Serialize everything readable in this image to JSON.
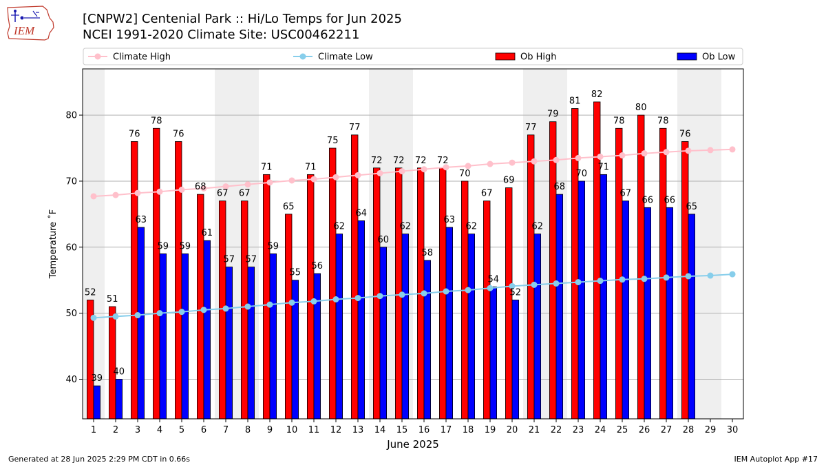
{
  "title_line1": "[CNPW2] Centenial Park :: Hi/Lo Temps for Jun 2025",
  "title_line2": "NCEI 1991-2020 Climate Site: USC00462211",
  "logo_text": "IEM",
  "footer_left": "Generated at 28 Jun 2025 2:29 PM CDT in 0.66s",
  "footer_right": "IEM Autoplot App #17",
  "colors": {
    "ob_high": "#ff0000",
    "ob_low": "#0000ff",
    "climate_high": "#ffc0cb",
    "climate_low": "#87ceeb",
    "weekend_band": "#efefef",
    "grid": "#b0b0b0"
  },
  "chart_data": {
    "type": "bar",
    "xlabel": "June 2025",
    "ylabel": "Temperature ˚F",
    "ylim": [
      34,
      87
    ],
    "yticks": [
      40,
      50,
      60,
      70,
      80
    ],
    "grid": "horizontal",
    "legend_position": "top",
    "x": [
      1,
      2,
      3,
      4,
      5,
      6,
      7,
      8,
      9,
      10,
      11,
      12,
      13,
      14,
      15,
      16,
      17,
      18,
      19,
      20,
      21,
      22,
      23,
      24,
      25,
      26,
      27,
      28,
      29,
      30
    ],
    "weekend_days": [
      1,
      7,
      8,
      14,
      15,
      21,
      22,
      28,
      29
    ],
    "series": [
      {
        "name": "Climate High",
        "kind": "line",
        "values": [
          67.7,
          67.9,
          68.2,
          68.4,
          68.7,
          68.9,
          69.2,
          69.5,
          69.8,
          70.1,
          70.3,
          70.6,
          70.9,
          71.2,
          71.5,
          71.8,
          72.1,
          72.3,
          72.6,
          72.8,
          73.0,
          73.2,
          73.5,
          73.7,
          73.9,
          74.2,
          74.4,
          74.6,
          74.7,
          74.8
        ]
      },
      {
        "name": "Climate Low",
        "kind": "line",
        "values": [
          49.3,
          49.5,
          49.7,
          50.0,
          50.2,
          50.5,
          50.7,
          51.0,
          51.3,
          51.6,
          51.8,
          52.1,
          52.3,
          52.6,
          52.8,
          53.0,
          53.3,
          53.5,
          53.8,
          54.1,
          54.3,
          54.5,
          54.7,
          54.9,
          55.1,
          55.2,
          55.4,
          55.6,
          55.7,
          55.9
        ]
      },
      {
        "name": "Ob High",
        "kind": "bar",
        "values": [
          52,
          51,
          76,
          78,
          76,
          68,
          67,
          67,
          71,
          65,
          71,
          75,
          77,
          72,
          72,
          72,
          72,
          70,
          67,
          69,
          77,
          79,
          81,
          82,
          78,
          80,
          78,
          76,
          null,
          null
        ]
      },
      {
        "name": "Ob Low",
        "kind": "bar",
        "values": [
          39,
          40,
          63,
          59,
          59,
          61,
          57,
          57,
          59,
          55,
          56,
          62,
          64,
          60,
          62,
          58,
          63,
          62,
          54,
          52,
          62,
          68,
          70,
          71,
          67,
          66,
          66,
          65,
          null,
          null
        ]
      }
    ]
  }
}
